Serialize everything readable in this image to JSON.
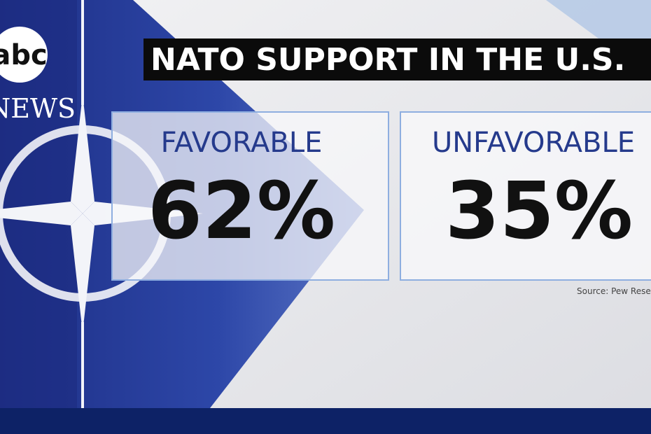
{
  "logo": {
    "mark": "abc",
    "word": "NEWS"
  },
  "header": {
    "title": "NATO SUPPORT IN THE U.S."
  },
  "panels": [
    {
      "label": "FAVORABLE",
      "value": "62%"
    },
    {
      "label": "UNFAVORABLE",
      "value": "35%"
    }
  ],
  "source": "Source: Pew Resea"
}
